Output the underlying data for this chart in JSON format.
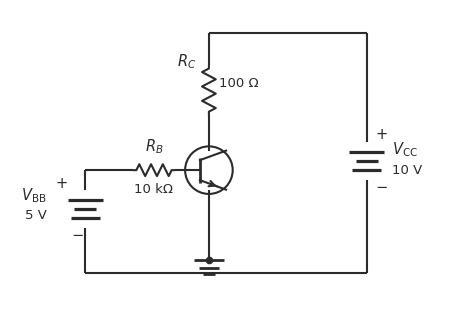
{
  "bg_color": "#ffffff",
  "line_color": "#2b2b2b",
  "lw": 1.5,
  "fig_w": 4.59,
  "fig_h": 3.22,
  "labels": {
    "RC": "$R_C$",
    "RC_val": "100 Ω",
    "RB": "$R_B$",
    "RB_val": "10 kΩ",
    "VBB": "$V_{\\mathrm{BB}}$",
    "VBB_val": "5 V",
    "VCC": "$V_{\\mathrm{CC}}$",
    "VCC_val": "10 V",
    "plus": "+",
    "minus": "−"
  }
}
